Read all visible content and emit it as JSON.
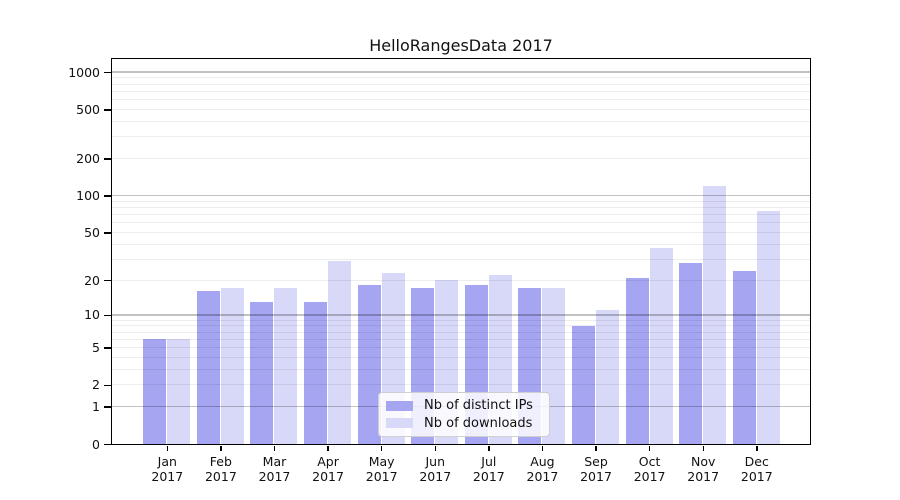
{
  "chart_data": {
    "type": "bar",
    "title": "HelloRangesData 2017",
    "categories": [
      "Jan",
      "Feb",
      "Mar",
      "Apr",
      "May",
      "Jun",
      "Jul",
      "Aug",
      "Sep",
      "Oct",
      "Nov",
      "Dec"
    ],
    "x_tick_year": "2017",
    "series": [
      {
        "name": "Nb of distinct IPs",
        "color": "#a5a5f1",
        "values": [
          6,
          16,
          13,
          13,
          18,
          17,
          18,
          17,
          8,
          21,
          28,
          24
        ]
      },
      {
        "name": "Nb of downloads",
        "color": "#d8d8f8",
        "values": [
          6,
          17,
          17,
          29,
          23,
          20,
          22,
          17,
          11,
          37,
          120,
          75
        ]
      }
    ],
    "xlabel": "",
    "ylabel": "",
    "yscale": "symlog (log1p)",
    "ylim": [
      0,
      1000
    ],
    "yticks": [
      0,
      1,
      2,
      5,
      10,
      20,
      50,
      100,
      200,
      500,
      1000
    ],
    "grid": true,
    "legend_position": "inside bottom-center"
  },
  "colors": {
    "major_gridline": "#c2c2c2",
    "minor_gridline": "#ededed",
    "axis": "#000000",
    "background": "#ffffff"
  }
}
